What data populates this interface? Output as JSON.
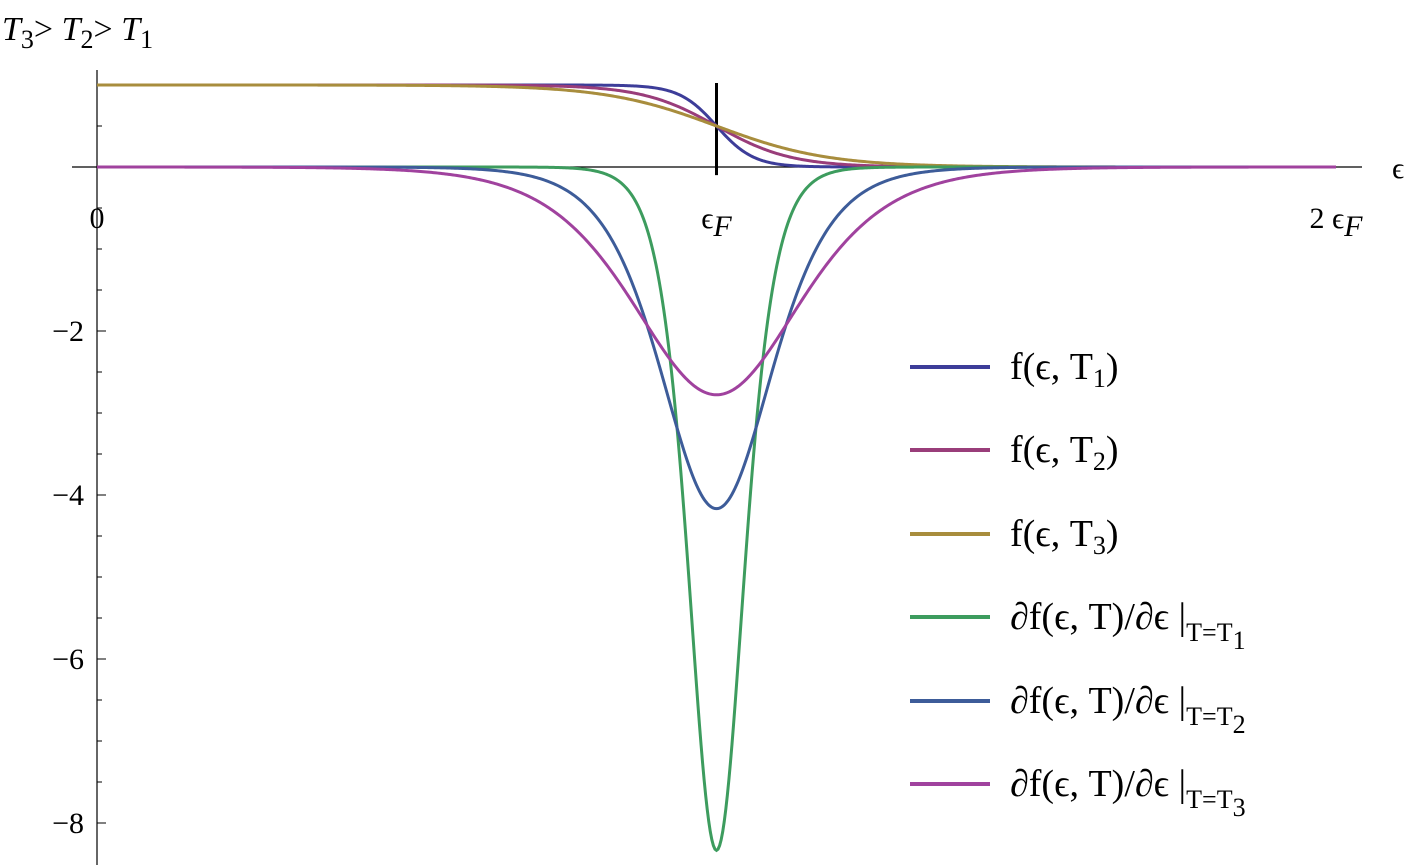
{
  "chart_data": {
    "type": "line",
    "title": "",
    "annotation": {
      "parts": [
        "T",
        "3",
        "> ",
        "T",
        "2",
        "> ",
        "T",
        "1"
      ]
    },
    "xlabel": "ϵ",
    "ylabel": "",
    "xlim": [
      0,
      2.04
    ],
    "ylim": [
      -8.4,
      1.15
    ],
    "x_ticks": [
      {
        "value": 0,
        "label": "0",
        "sub": ""
      },
      {
        "value": 1,
        "label": "ϵ",
        "sub": "F"
      },
      {
        "value": 2,
        "label": "2 ϵ",
        "sub": "F"
      }
    ],
    "y_ticks": [
      {
        "value": -2,
        "label": "−2"
      },
      {
        "value": -4,
        "label": "−4"
      },
      {
        "value": -6,
        "label": "−6"
      },
      {
        "value": -8,
        "label": "−8"
      }
    ],
    "fermi_marker": {
      "x": 1,
      "y_from": -0.05,
      "y_to": 1.0
    },
    "x_domain": [
      0,
      2
    ],
    "series": [
      {
        "name": "f(ϵ, T",
        "sub": "1",
        "suffix": ")",
        "kind": "fermi",
        "kT": 0.03,
        "color": "#3d3d99"
      },
      {
        "name": "f(ϵ, T",
        "sub": "2",
        "suffix": ")",
        "kind": "fermi",
        "kT": 0.06,
        "color": "#993d7a"
      },
      {
        "name": "f(ϵ, T",
        "sub": "3",
        "suffix": ")",
        "kind": "fermi",
        "kT": 0.09,
        "color": "#a88d3d"
      },
      {
        "name": "∂f(ϵ, T)/∂ϵ |",
        "sub": "T=T",
        "subsub": "1",
        "kind": "derivative",
        "kT": 0.03,
        "color": "#3d9c5e"
      },
      {
        "name": "∂f(ϵ, T)/∂ϵ |",
        "sub": "T=T",
        "subsub": "2",
        "kind": "derivative",
        "kT": 0.06,
        "color": "#3d5c99"
      },
      {
        "name": "∂f(ϵ, T)/∂ϵ |",
        "sub": "T=T",
        "subsub": "3",
        "kind": "derivative",
        "kT": 0.09,
        "color": "#a0429e"
      }
    ],
    "minima": [
      {
        "series": "∂f/∂ϵ T1",
        "x": 1,
        "y": -8.33
      },
      {
        "series": "∂f/∂ϵ T2",
        "x": 1,
        "y": -4.17
      },
      {
        "series": "∂f/∂ϵ T3",
        "x": 1,
        "y": -2.78
      }
    ],
    "legend_position": "right",
    "grid": false
  }
}
